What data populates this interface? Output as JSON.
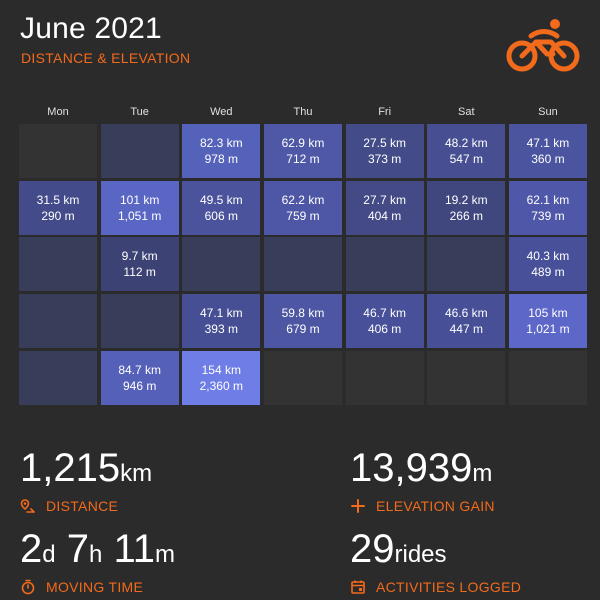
{
  "header": {
    "title": "June 2021",
    "subtitle": "DISTANCE & ELEVATION",
    "logo_icon": "bicycle-rider-icon",
    "accent_color": "#f26a1b"
  },
  "calendar": {
    "days": [
      "Mon",
      "Tue",
      "Wed",
      "Thu",
      "Fri",
      "Sat",
      "Sun"
    ],
    "weeks": [
      [
        {
          "distance": "",
          "elevation": "",
          "color": "#333333"
        },
        {
          "distance": "",
          "elevation": "",
          "color": "#383d5a"
        },
        {
          "distance": "82.3 km",
          "elevation": "978 m",
          "color": "#5562ba"
        },
        {
          "distance": "62.9 km",
          "elevation": "712 m",
          "color": "#4e58a6"
        },
        {
          "distance": "27.5 km",
          "elevation": "373 m",
          "color": "#434c88"
        },
        {
          "distance": "48.2 km",
          "elevation": "547 m",
          "color": "#474f92"
        },
        {
          "distance": "47.1 km",
          "elevation": "360 m",
          "color": "#4b549e"
        }
      ],
      [
        {
          "distance": "31.5 km",
          "elevation": "290 m",
          "color": "#434b8a"
        },
        {
          "distance": "101 km",
          "elevation": "1,051 m",
          "color": "#5a66c4"
        },
        {
          "distance": "49.5 km",
          "elevation": "606 m",
          "color": "#4b539c"
        },
        {
          "distance": "62.2 km",
          "elevation": "759 m",
          "color": "#4e57a6"
        },
        {
          "distance": "27.7 km",
          "elevation": "404 m",
          "color": "#434a86"
        },
        {
          "distance": "19.2 km",
          "elevation": "266 m",
          "color": "#40467e"
        },
        {
          "distance": "62.1 km",
          "elevation": "739 m",
          "color": "#4f58a8"
        }
      ],
      [
        {
          "distance": "",
          "elevation": "",
          "color": "#383d5a"
        },
        {
          "distance": "9.7 km",
          "elevation": "112 m",
          "color": "#3c4274"
        },
        {
          "distance": "",
          "elevation": "",
          "color": "#383d5a"
        },
        {
          "distance": "",
          "elevation": "",
          "color": "#383d5a"
        },
        {
          "distance": "",
          "elevation": "",
          "color": "#383d5a"
        },
        {
          "distance": "",
          "elevation": "",
          "color": "#383d5a"
        },
        {
          "distance": "40.3 km",
          "elevation": "489 m",
          "color": "#48509a"
        }
      ],
      [
        {
          "distance": "",
          "elevation": "",
          "color": "#383d5a"
        },
        {
          "distance": "",
          "elevation": "",
          "color": "#383d5a"
        },
        {
          "distance": "47.1 km",
          "elevation": "393 m",
          "color": "#474f94"
        },
        {
          "distance": "59.8 km",
          "elevation": "679 m",
          "color": "#4d56a2"
        },
        {
          "distance": "46.7 km",
          "elevation": "406 m",
          "color": "#48509a"
        },
        {
          "distance": "46.6 km",
          "elevation": "447 m",
          "color": "#474f96"
        },
        {
          "distance": "105 km",
          "elevation": "1,021 m",
          "color": "#5c67c8"
        }
      ],
      [
        {
          "distance": "",
          "elevation": "",
          "color": "#383d5a"
        },
        {
          "distance": "84.7 km",
          "elevation": "946 m",
          "color": "#5561b8"
        },
        {
          "distance": "154 km",
          "elevation": "2,360 m",
          "color": "#6f7de6"
        },
        {
          "distance": "",
          "elevation": "",
          "color": "#333333"
        },
        {
          "distance": "",
          "elevation": "",
          "color": "#333333"
        },
        {
          "distance": "",
          "elevation": "",
          "color": "#333333"
        },
        {
          "distance": "",
          "elevation": "",
          "color": "#333333"
        }
      ]
    ]
  },
  "stats": {
    "distance": {
      "value": "1,215",
      "unit": "km",
      "label": "DISTANCE",
      "icon": "route-pin-icon"
    },
    "elevation": {
      "value": "13,939",
      "unit": "m",
      "label": "ELEVATION GAIN",
      "icon": "plus-icon"
    },
    "moving_time": {
      "d_value": "2",
      "d_unit": "d",
      "h_value": "7",
      "h_unit": "h",
      "m_value": "11",
      "m_unit": "m",
      "label": "MOVING TIME",
      "icon": "stopwatch-icon"
    },
    "activities": {
      "value": "29",
      "unit": "rides",
      "label": "ACTIVITIES LOGGED",
      "icon": "calendar-icon"
    }
  }
}
